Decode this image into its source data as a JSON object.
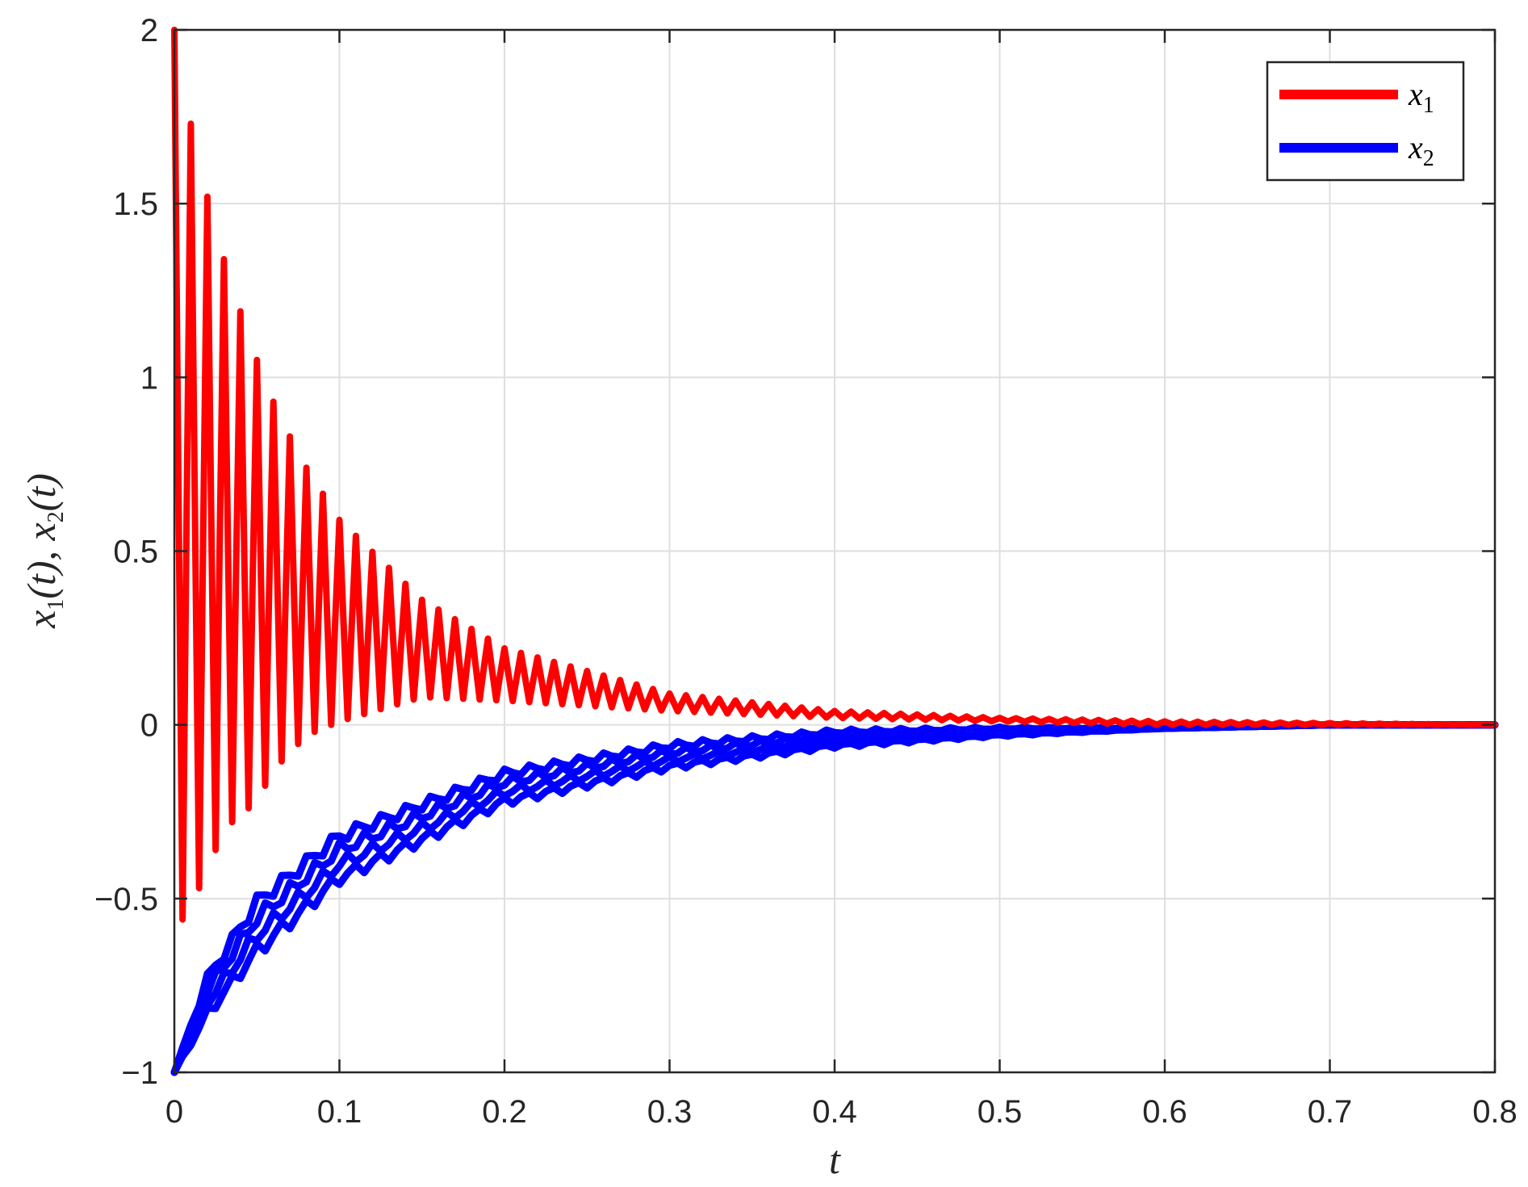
{
  "chart_data": {
    "type": "line",
    "xlabel": "t",
    "ylabel": "x₁(t),  x₂(t)",
    "xlim": [
      0,
      0.8
    ],
    "ylim": [
      -1,
      2
    ],
    "xticks": [
      "0",
      "0.1",
      "0.2",
      "0.3",
      "0.4",
      "0.5",
      "0.6",
      "0.7",
      "0.8"
    ],
    "yticks": [
      "−1",
      "−0.5",
      "0",
      "0.5",
      "1",
      "1.5",
      "2"
    ],
    "grid": true,
    "legend_position": "top-right",
    "series": [
      {
        "name": "x1",
        "color": "#ff0000",
        "description_values": {
          "t": [
            0,
            0.01,
            0.02,
            0.03,
            0.04,
            0.05,
            0.06,
            0.07,
            0.08,
            0.1,
            0.15,
            0.2,
            0.3,
            0.4,
            0.5,
            0.6,
            0.8
          ],
          "upper_envelope": [
            2.0,
            1.73,
            1.52,
            1.34,
            1.19,
            1.05,
            0.93,
            0.83,
            0.74,
            0.59,
            0.36,
            0.22,
            0.09,
            0.04,
            0.02,
            0.01,
            0.0
          ],
          "lower_envelope": [
            -0.6,
            -0.52,
            -0.42,
            -0.3,
            -0.26,
            -0.22,
            -0.13,
            -0.08,
            -0.03,
            0.01,
            0.08,
            0.07,
            0.04,
            0.02,
            0.01,
            0.0,
            0.0
          ]
        }
      },
      {
        "name": "x2",
        "color": "#0000ff",
        "description_values": {
          "t": [
            0,
            0.02,
            0.05,
            0.1,
            0.15,
            0.2,
            0.3,
            0.4,
            0.5,
            0.6,
            0.7,
            0.8
          ],
          "mean": [
            -1.0,
            -0.78,
            -0.58,
            -0.38,
            -0.28,
            -0.18,
            -0.09,
            -0.04,
            -0.02,
            -0.01,
            0.0,
            0.0
          ],
          "spread": [
            0.0,
            0.05,
            0.07,
            0.06,
            0.05,
            0.04,
            0.03,
            0.02,
            0.01,
            0.0,
            0.0,
            0.0
          ]
        }
      }
    ]
  },
  "legend": {
    "items": [
      {
        "label": "x",
        "sub": "1",
        "color": "#ff0000"
      },
      {
        "label": "x",
        "sub": "2",
        "color": "#0000ff"
      }
    ]
  }
}
